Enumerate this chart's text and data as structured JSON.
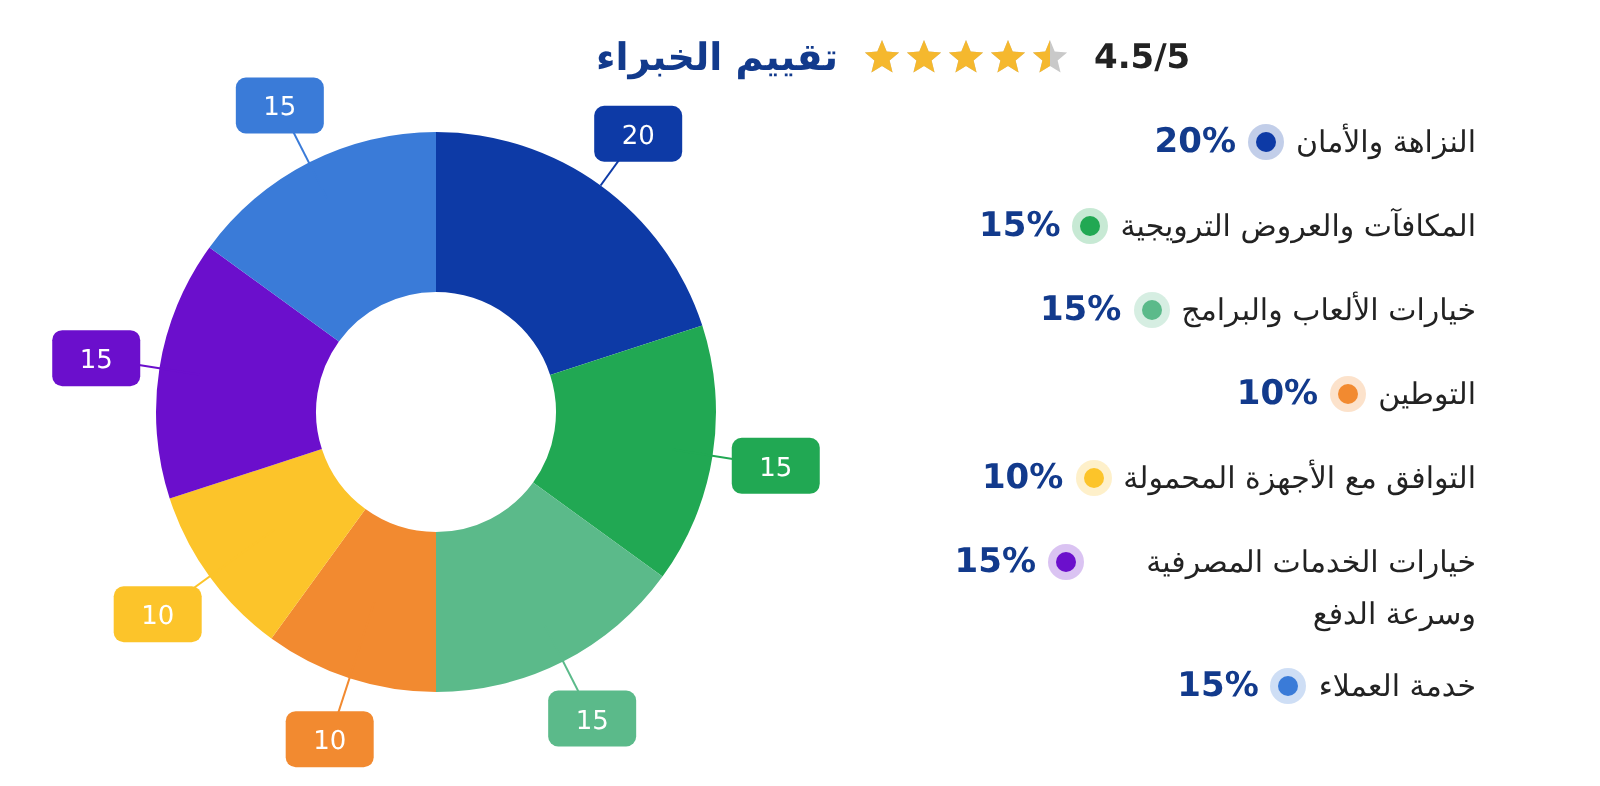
{
  "chart_data": {
    "type": "donut",
    "title": "تقييم الخبراء",
    "subtitle": "4.5/5",
    "categories": [
      "النزاهة والأمان",
      "المكافآت والعروض الترويجية",
      "خيارات الألعاب والبرامج",
      "التوطين",
      "التوافق مع الأجهزة المحمولة",
      "خيارات الخدمات المصرفية وسرعة الدفع",
      "خدمة العملاء"
    ],
    "values": [
      20,
      15,
      15,
      10,
      10,
      15,
      15
    ],
    "annotations": [
      "20%",
      "15%",
      "15%",
      "10%",
      "10%",
      "15%",
      "15%"
    ],
    "colors": [
      "#0d3aa6",
      "#21a853",
      "#5bba8a",
      "#f28a30",
      "#fcc42a",
      "#6b0fcc",
      "#3a7bd8"
    ],
    "data_labels": true,
    "legend": "right"
  }
}
